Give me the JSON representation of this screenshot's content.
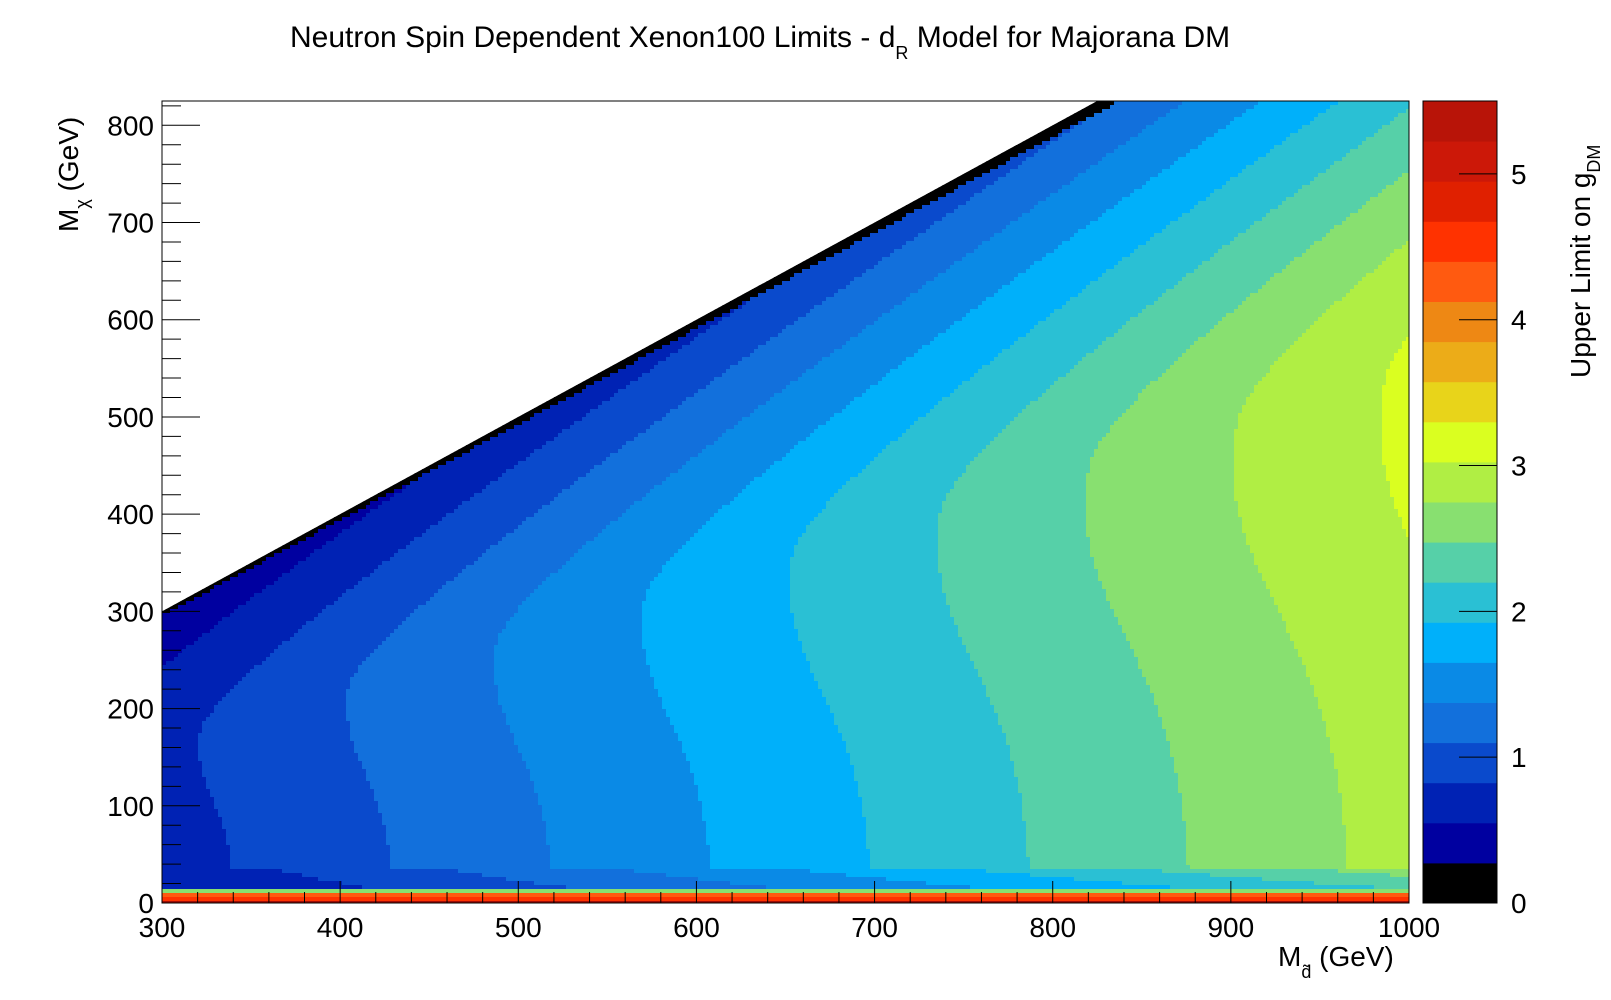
{
  "chart_data": {
    "type": "heatmap",
    "title": {
      "main": "Neutron Spin Dependent Xenon100 Limits - d",
      "subscript": "R",
      "rest": " Model for Majorana DM"
    },
    "xlabel": {
      "main": "M",
      "subscript": "d̃",
      "rest": " (GeV)"
    },
    "ylabel": {
      "main": "M",
      "subscript": "χ",
      "rest": " (GeV)"
    },
    "zlabel": {
      "main": "Upper Limit on g",
      "subscript": "DM"
    },
    "xlim": [
      300,
      1000
    ],
    "ylim": [
      0,
      825
    ],
    "zlim": [
      0,
      5.5
    ],
    "x_ticks": [
      "300",
      "400",
      "500",
      "600",
      "700",
      "800",
      "900",
      "1000"
    ],
    "y_ticks": [
      "0",
      "100",
      "200",
      "300",
      "400",
      "500",
      "600",
      "700",
      "800"
    ],
    "z_ticks": [
      "0",
      "1",
      "2",
      "3",
      "4",
      "5"
    ],
    "region_constraint": "Mχ < Md̃ (white region above diagonal has no data)",
    "contour_levels": [
      0,
      0.275,
      0.55,
      0.825,
      1.1,
      1.375,
      1.65,
      1.925,
      2.2,
      2.475,
      2.75,
      3.025,
      3.3,
      3.575,
      3.85,
      4.125,
      4.4,
      4.675,
      4.95,
      5.225,
      5.5
    ],
    "palette": [
      "#000000",
      "#0000a0",
      "#0022b4",
      "#0a4acc",
      "#1270dc",
      "#0a8ae6",
      "#00b0fa",
      "#2ac0d4",
      "#56d0a8",
      "#88e070",
      "#b0ee44",
      "#daff20",
      "#e8d41a",
      "#ecac18",
      "#ee8814",
      "#ff5a10",
      "#ff3200",
      "#e02000",
      "#cc1808",
      "#b81408",
      "#a00c04"
    ],
    "approx_values": {
      "note": "value at low Mχ (~50 GeV) by M_d; rises roughly linearly",
      "x": [
        300,
        400,
        500,
        600,
        700,
        800,
        900,
        1000
      ],
      "y_at_chi_50": [
        0.7,
        1.05,
        1.35,
        1.65,
        1.95,
        2.25,
        2.55,
        2.85
      ],
      "peak_region": "about 3.1 near M_d 1000 GeV, Mχ 300–550 GeV"
    }
  }
}
